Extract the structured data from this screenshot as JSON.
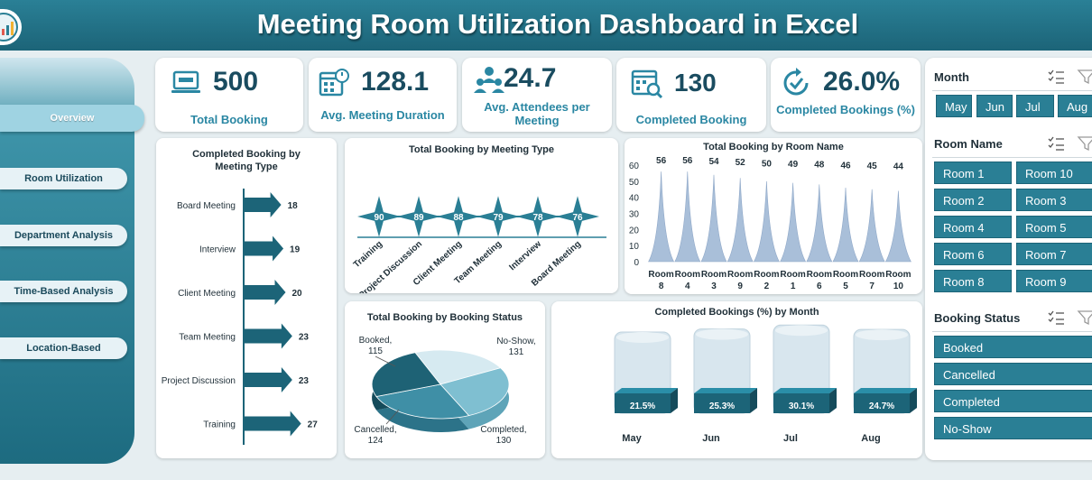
{
  "header": {
    "title": "Meeting Room Utilization Dashboard in Excel"
  },
  "logo": {
    "name": "logo-icon"
  },
  "nav": [
    {
      "label": "Overview",
      "active": true
    },
    {
      "label": "Room Utilization"
    },
    {
      "label": "Department Analysis"
    },
    {
      "label": "Time-Based Analysis"
    },
    {
      "label": "Location-Based"
    }
  ],
  "kpis": [
    {
      "value": "500",
      "label": "Total Booking",
      "icon": "booking-laptop-icon"
    },
    {
      "value": "128.1",
      "label": "Avg. Meeting Duration",
      "icon": "calendar-clock-icon"
    },
    {
      "value": "24.7",
      "label": "Avg. Attendees per Meeting",
      "icon": "attendees-icon"
    },
    {
      "value": "130",
      "label": "Completed Booking",
      "icon": "calendar-search-icon"
    },
    {
      "value": "26.0%",
      "label": "Completed Bookings (%)",
      "icon": "refresh-check-icon"
    }
  ],
  "colors": {
    "primary": "#2a7f95",
    "dark": "#1c6478",
    "accent": "#2a87a3",
    "area": "#a9bfd9"
  },
  "chart_data": [
    {
      "type": "bar",
      "orientation": "horizontal",
      "title": "Completed Booking by Meeting Type",
      "categories": [
        "Board Meeting",
        "Interview",
        "Client Meeting",
        "Team Meeting",
        "Project Discussion",
        "Training"
      ],
      "values": [
        18,
        19,
        20,
        23,
        23,
        27
      ]
    },
    {
      "type": "line",
      "title": "Total Booking by Meeting Type",
      "categories": [
        "Training",
        "Project Discussion",
        "Client Meeting",
        "Team Meeting",
        "Interview",
        "Board Meeting"
      ],
      "values": [
        90,
        89,
        88,
        79,
        78,
        76
      ]
    },
    {
      "type": "area",
      "title": "Total Booking by Room Name",
      "categories": [
        "Room 8",
        "Room 4",
        "Room 3",
        "Room 9",
        "Room 2",
        "Room 1",
        "Room 6",
        "Room 5",
        "Room 7",
        "Room 10"
      ],
      "values": [
        56,
        56,
        54,
        52,
        50,
        49,
        48,
        46,
        45,
        44
      ],
      "ylim": [
        0,
        60
      ],
      "yticks": [
        0,
        10,
        20,
        30,
        40,
        50,
        60
      ]
    },
    {
      "type": "pie",
      "title": "Total Booking by Booking Status",
      "slices": [
        {
          "label": "Booked",
          "value": 115
        },
        {
          "label": "No-Show",
          "value": 131
        },
        {
          "label": "Completed",
          "value": 130
        },
        {
          "label": "Cancelled",
          "value": 124
        }
      ]
    },
    {
      "type": "bar",
      "title": "Completed Bookings (%) by Month",
      "categories": [
        "May",
        "Jun",
        "Jul",
        "Aug"
      ],
      "values": [
        21.5,
        25.3,
        30.1,
        24.7
      ],
      "labels": [
        "21.5%",
        "25.3%",
        "30.1%",
        "24.7%"
      ]
    }
  ],
  "slicers": [
    {
      "title": "Month",
      "items": [
        "May",
        "Jun",
        "Jul",
        "Aug"
      ]
    },
    {
      "title": "Room Name",
      "items": [
        "Room 1",
        "Room 10",
        "Room 2",
        "Room 3",
        "Room 4",
        "Room 5",
        "Room 6",
        "Room 7",
        "Room 8",
        "Room 9"
      ]
    },
    {
      "title": "Booking Status",
      "items": [
        "Booked",
        "Cancelled",
        "Completed",
        "No-Show"
      ]
    }
  ]
}
